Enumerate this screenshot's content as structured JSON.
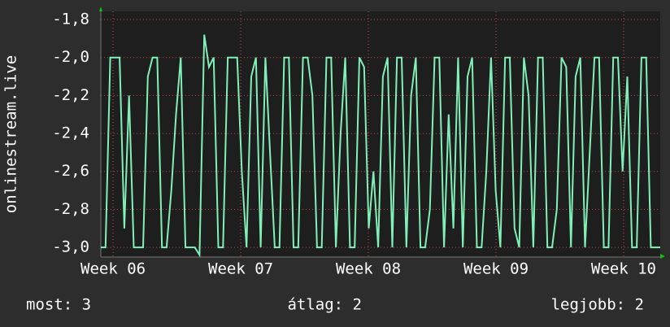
{
  "chart_data": {
    "type": "line",
    "ylabel": "onlinestream.live",
    "xlim": [
      5.904,
      10.287
    ],
    "xticks": [
      {
        "value": 6,
        "label": "Week 06"
      },
      {
        "value": 7,
        "label": "Week 07"
      },
      {
        "value": 8,
        "label": "Week 08"
      },
      {
        "value": 9,
        "label": "Week 09"
      },
      {
        "value": 10,
        "label": "Week 10"
      }
    ],
    "ylim": [
      -3.051,
      -1.757
    ],
    "yticks": [
      {
        "value": -1.8,
        "label": "-1,8"
      },
      {
        "value": -2.0,
        "label": "-2,0"
      },
      {
        "value": -2.2,
        "label": "-2,2"
      },
      {
        "value": -2.4,
        "label": "-2,4"
      },
      {
        "value": -2.6,
        "label": "-2,6"
      },
      {
        "value": -2.8,
        "label": "-2,8"
      },
      {
        "value": -3.0,
        "label": "-3,0"
      }
    ],
    "grid": true,
    "color": "#80f0b8",
    "values": [
      -3,
      -3,
      -2,
      -2,
      -2,
      -2.9,
      -2.2,
      -3,
      -3,
      -3,
      -2.1,
      -2,
      -2,
      -3,
      -3,
      -2.7,
      -2.3,
      -2,
      -3,
      -3,
      -3,
      -3.04,
      -1.88,
      -2.05,
      -2,
      -3,
      -3,
      -2,
      -2,
      -2,
      -2.6,
      -3,
      -2.1,
      -2,
      -3,
      -2,
      -2.5,
      -3,
      -3,
      -2,
      -2,
      -3,
      -3,
      -2,
      -2,
      -2.2,
      -3,
      -3,
      -2,
      -2,
      -3,
      -2.4,
      -2,
      -3,
      -3,
      -2,
      -2.05,
      -2.9,
      -2.6,
      -3,
      -2.1,
      -2,
      -3,
      -2,
      -2,
      -3,
      -2.2,
      -2,
      -3,
      -3,
      -2.8,
      -2,
      -2,
      -3,
      -2.3,
      -2.9,
      -2,
      -3,
      -2.1,
      -2,
      -3,
      -3,
      -2.6,
      -2,
      -2.7,
      -3,
      -2,
      -2,
      -2.9,
      -3,
      -2,
      -2.2,
      -3,
      -2,
      -2,
      -3,
      -3,
      -2.8,
      -2,
      -2.05,
      -3,
      -2.1,
      -2,
      -3,
      -2.5,
      -2,
      -2,
      -3,
      -3,
      -2,
      -2,
      -2.6,
      -2.1,
      -3,
      -3,
      -2,
      -2,
      -3,
      -3,
      -3
    ]
  },
  "footer": [
    "most: 3",
    "átlag: 2",
    "legjobb: 2"
  ]
}
